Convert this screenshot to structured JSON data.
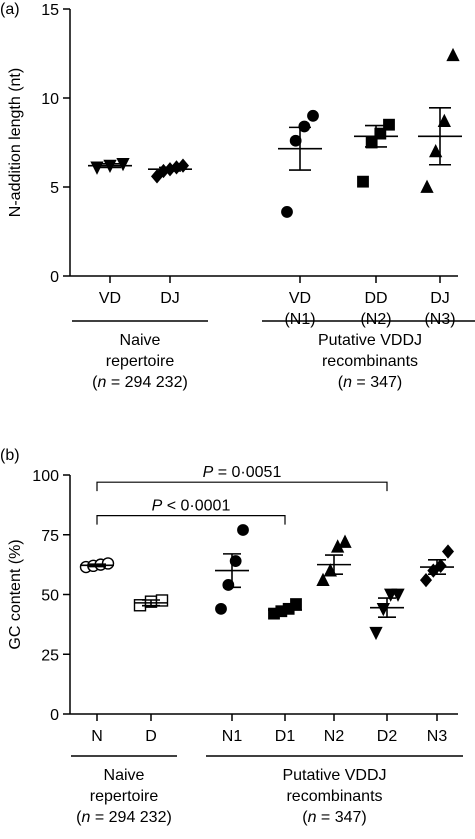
{
  "chart_data": [
    {
      "type": "scatter",
      "panel_label": "(a)",
      "ylabel": "N-addition length (nt)",
      "ylim": [
        0,
        15
      ],
      "yticks": [
        0,
        5,
        10,
        15
      ],
      "categories": [
        {
          "label": [
            "VD"
          ],
          "marker": "triangle-down",
          "points": [
            6.1,
            6.2,
            6.3
          ],
          "mean": 6.2,
          "err": 0.1
        },
        {
          "label": [
            "DJ"
          ],
          "marker": "diamond",
          "points": [
            5.6,
            5.9,
            6.0,
            6.1,
            6.2
          ],
          "mean": 6.0,
          "err": 0.1
        },
        {
          "label": [
            "VD",
            "(N1)"
          ],
          "marker": "circle",
          "points": [
            3.6,
            7.6,
            8.4,
            9.0
          ],
          "mean": 7.15,
          "err": 1.2
        },
        {
          "label": [
            "DD",
            "(N2)"
          ],
          "marker": "square",
          "points": [
            5.3,
            7.5,
            8.0,
            8.5
          ],
          "mean": 7.85,
          "err": 0.6
        },
        {
          "label": [
            "DJ",
            "(N3)"
          ],
          "marker": "triangle-up",
          "points": [
            5.0,
            7.0,
            8.7,
            12.4
          ],
          "mean": 7.85,
          "err": 1.6
        }
      ],
      "groups": [
        {
          "lines": [
            "Naive",
            "repertoire",
            "(n = 294 232)"
          ],
          "span": [
            0,
            1
          ]
        },
        {
          "lines": [
            "Putative VDDJ",
            "recombinants",
            "(n = 347)"
          ],
          "span": [
            2,
            4
          ]
        }
      ]
    },
    {
      "type": "scatter",
      "panel_label": "(b)",
      "ylabel": "GC content (%)",
      "ylim": [
        0,
        100
      ],
      "yticks": [
        0,
        25,
        50,
        75,
        100
      ],
      "categories": [
        {
          "label": [
            "N"
          ],
          "marker": "circle-open",
          "points": [
            61.5,
            62.0,
            62.5,
            63.0
          ],
          "mean": 62.2,
          "err": 0.5
        },
        {
          "label": [
            "D"
          ],
          "marker": "square-open",
          "points": [
            45.5,
            47.0,
            47.5
          ],
          "mean": 46.5,
          "err": 1.2
        },
        {
          "label": [
            "N1"
          ],
          "marker": "circle",
          "points": [
            44,
            54,
            64,
            77
          ],
          "mean": 60,
          "err": 7
        },
        {
          "label": [
            "D1"
          ],
          "marker": "square",
          "points": [
            42,
            43,
            44,
            46
          ],
          "mean": 43.5,
          "err": 1.5
        },
        {
          "label": [
            "N2"
          ],
          "marker": "triangle-up",
          "points": [
            56,
            60,
            70,
            72
          ],
          "mean": 62.5,
          "err": 4
        },
        {
          "label": [
            "D2"
          ],
          "marker": "triangle-down",
          "points": [
            34,
            44,
            50,
            50
          ],
          "mean": 44.5,
          "err": 4
        },
        {
          "label": [
            "N3"
          ],
          "marker": "diamond",
          "points": [
            56,
            60,
            62,
            68
          ],
          "mean": 61.5,
          "err": 3
        }
      ],
      "groups": [
        {
          "lines": [
            "Naive",
            "repertoire",
            "(n = 294 232)"
          ],
          "span": [
            0,
            1
          ]
        },
        {
          "lines": [
            "Putative VDDJ",
            "recombinants",
            "(n = 347)"
          ],
          "span": [
            2,
            6
          ]
        }
      ],
      "brackets": [
        {
          "from": 0,
          "to": 5,
          "label": "P = 0·0051",
          "y": 97
        },
        {
          "from": 0,
          "to": 3,
          "label": "P < 0·0001",
          "y": 83
        }
      ]
    }
  ]
}
